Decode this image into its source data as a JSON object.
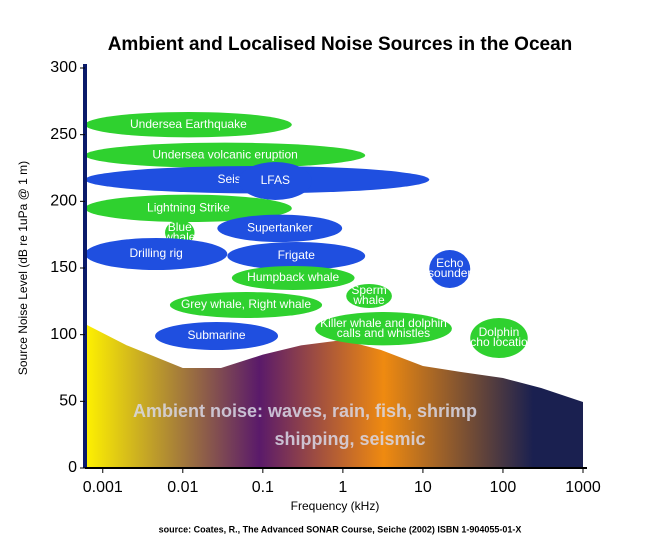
{
  "chart_data": {
    "type": "region",
    "title": "Ambient and Localised Noise Sources in the Ocean",
    "x_label": "Frequency (kHz)",
    "y_label": "Source Noise Level (dB re 1uPa @ 1 m)",
    "source": "source:  Coates, R., The Advanced SONAR Course, Seiche (2002) ISBN 1-904055-01-X",
    "log_x": true,
    "xlim": [
      0.0006,
      1000
    ],
    "xticks": [
      0.001,
      0.01,
      0.1,
      1,
      10,
      100,
      1000
    ],
    "ylim": [
      0,
      300
    ],
    "yticks": [
      0,
      50,
      100,
      150,
      200,
      250,
      300
    ],
    "regions": [
      {
        "label": [
          "Undersea Earthquake"
        ],
        "color": "#2fd12f",
        "x": [
          0.0006,
          0.23
        ],
        "y": [
          248,
          267
        ]
      },
      {
        "label": [
          "Undersea volcanic eruption"
        ],
        "color": "#2fd12f",
        "x": [
          0.0006,
          1.9
        ],
        "y": [
          225,
          244
        ]
      },
      {
        "label": [
          "Seismic Airgun"
        ],
        "color": "#1f4fe0",
        "x": [
          0.0006,
          12
        ],
        "y": [
          206,
          226.5
        ]
      },
      {
        "label": [
          "LFAS"
        ],
        "color": "#1f4fe0",
        "x": [
          0.05,
          0.41
        ],
        "y": [
          201,
          229.5
        ]
      },
      {
        "label": [
          "Lightning Strike"
        ],
        "color": "#2fd12f",
        "x": [
          0.0006,
          0.23
        ],
        "y": [
          184.5,
          205
        ]
      },
      {
        "label": [
          "Blue",
          "whale"
        ],
        "color": "#2fd12f",
        "x": [
          0.006,
          0.014
        ],
        "y": [
          167,
          186
        ]
      },
      {
        "label": [
          "Supertanker"
        ],
        "color": "#1f4fe0",
        "x": [
          0.027,
          0.98
        ],
        "y": [
          169.5,
          190
        ]
      },
      {
        "label": [
          "Drilling rig"
        ],
        "color": "#1f4fe0",
        "x": [
          0.0006,
          0.036
        ],
        "y": [
          148.5,
          172.5
        ]
      },
      {
        "label": [
          "Frigate"
        ],
        "color": "#1f4fe0",
        "x": [
          0.036,
          1.9
        ],
        "y": [
          148.5,
          169.5
        ]
      },
      {
        "label": [
          "Echo",
          "sounder"
        ],
        "color": "#1f4fe0",
        "x": [
          12,
          39
        ],
        "y": [
          135,
          163.5
        ]
      },
      {
        "label": [
          "Humpback whale"
        ],
        "color": "#2fd12f",
        "x": [
          0.041,
          1.4
        ],
        "y": [
          133.5,
          151.5
        ]
      },
      {
        "label": [
          "Sperm",
          "whale"
        ],
        "color": "#2fd12f",
        "x": [
          1.1,
          4.1
        ],
        "y": [
          120,
          138
        ]
      },
      {
        "label": [
          "Grey whale, Right whale"
        ],
        "color": "#2fd12f",
        "x": [
          0.0069,
          0.55
        ],
        "y": [
          112.5,
          132
        ]
      },
      {
        "label": [
          "Killer whale and dolphin",
          "calls and whistles"
        ],
        "color": "#2fd12f",
        "x": [
          0.45,
          23
        ],
        "y": [
          92,
          117
        ]
      },
      {
        "label": [
          "Dolphin",
          "echo location"
        ],
        "color": "#2fd12f",
        "x": [
          39,
          204
        ],
        "y": [
          82.5,
          112.5
        ]
      },
      {
        "label": [
          "Submarine"
        ],
        "color": "#1f4fe0",
        "x": [
          0.0045,
          0.155
        ],
        "y": [
          88.5,
          109.5
        ]
      }
    ],
    "ambient": {
      "x": [
        0.0006,
        0.002,
        0.01,
        0.03,
        0.1,
        0.3,
        1,
        3,
        10,
        30,
        100,
        300,
        1000
      ],
      "values": [
        108,
        92,
        75,
        75,
        85,
        92,
        96,
        88.5,
        76.5,
        72,
        67.5,
        60,
        49.5
      ],
      "colors": [
        "#fff200",
        "#5a1a6a",
        "#ef8a10",
        "#1a2050"
      ],
      "label": [
        "Ambient noise:   waves, rain, fish, shrimp",
        "shipping, seismic"
      ]
    }
  }
}
